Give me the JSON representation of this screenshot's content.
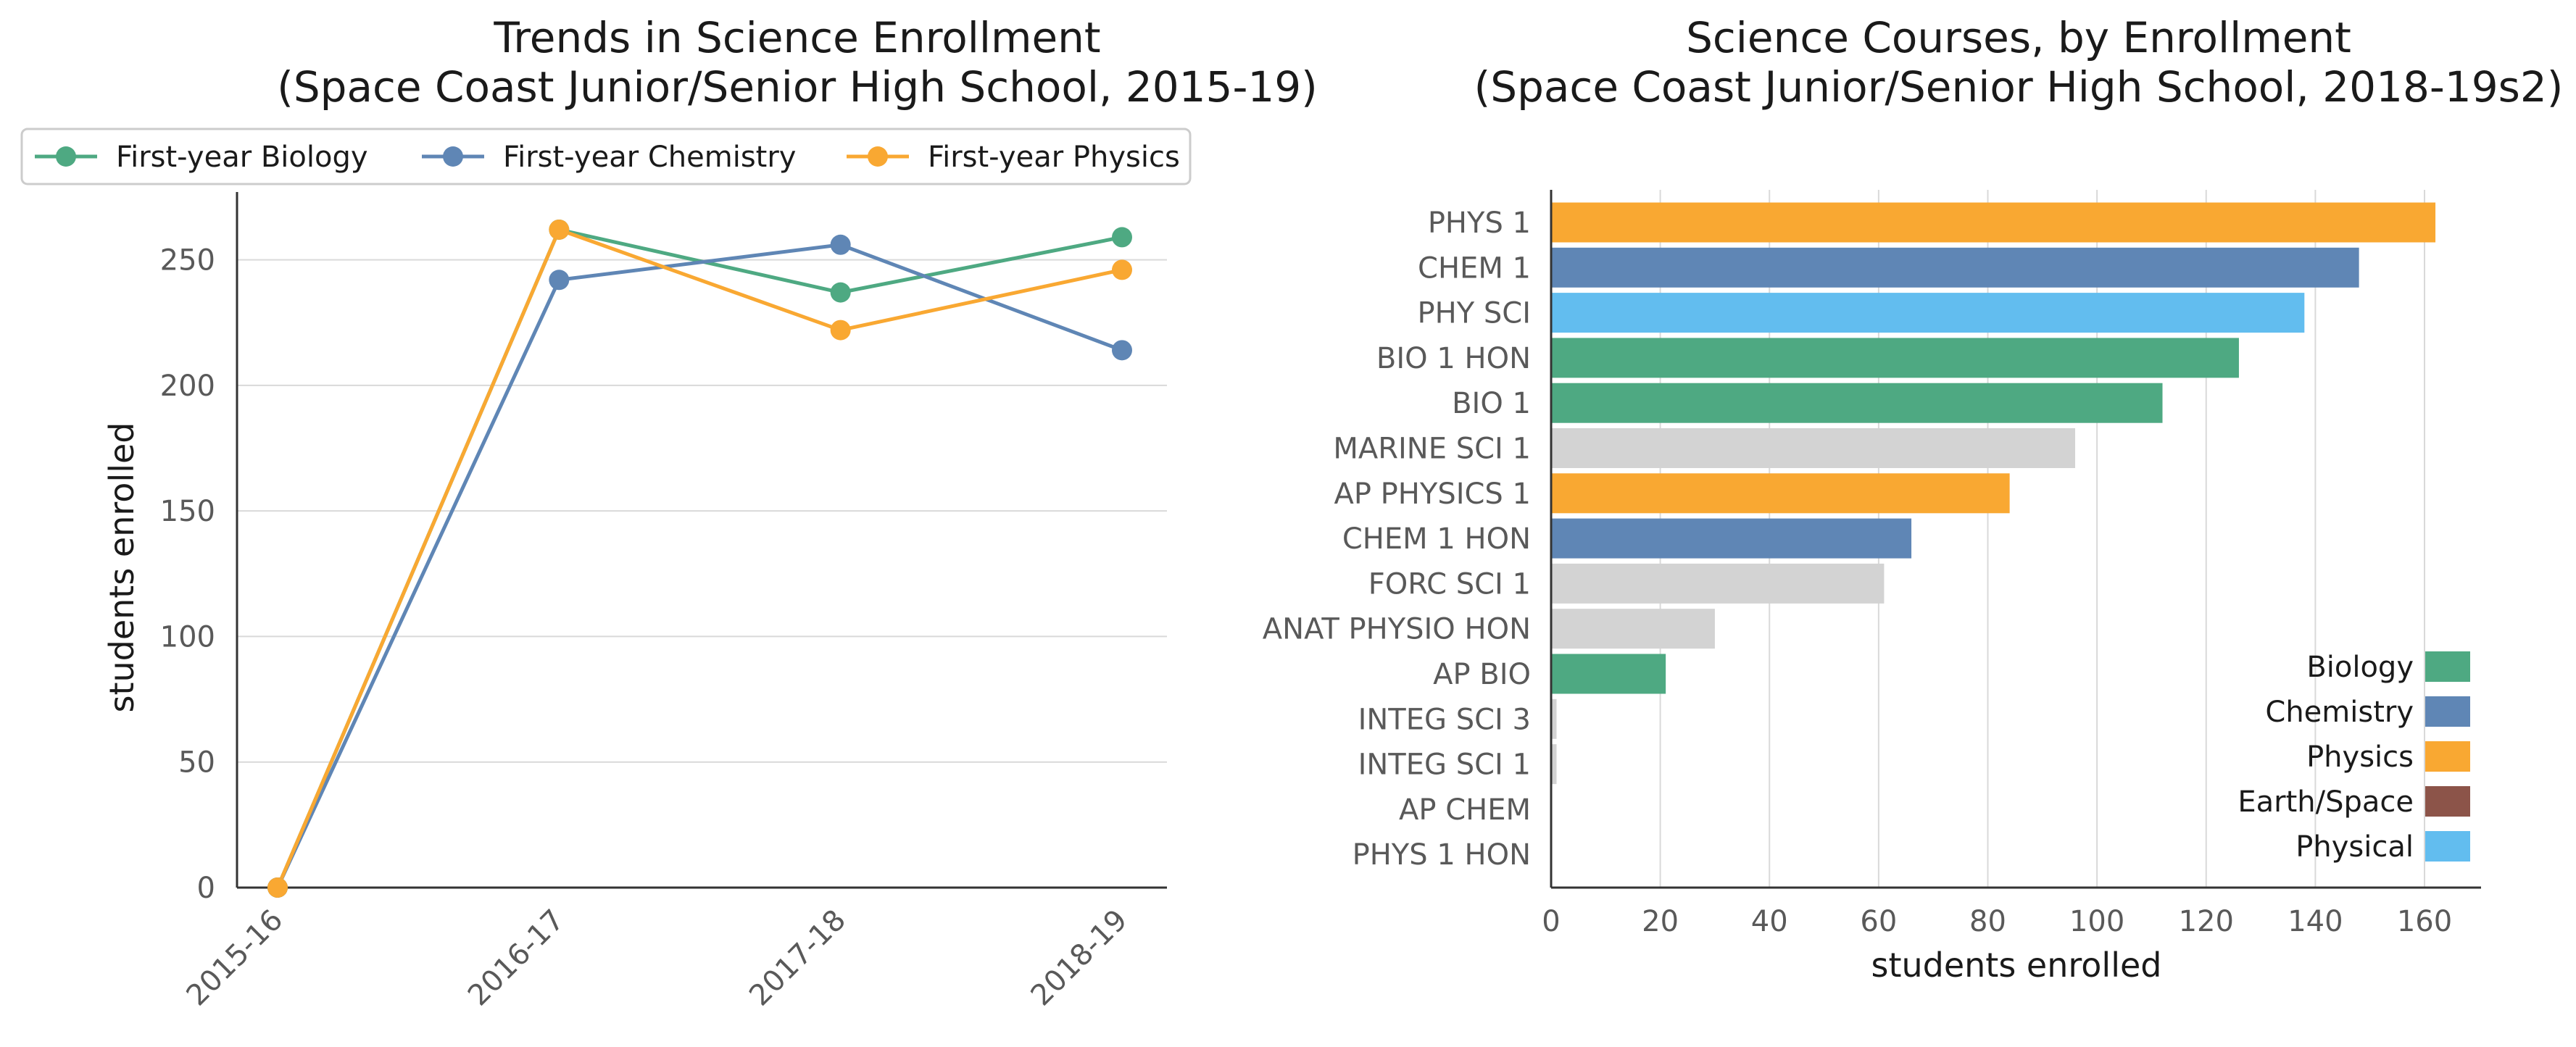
{
  "chart_data": [
    {
      "type": "line",
      "title": "Trends in Science Enrollment",
      "subtitle": "(Space Coast Junior/Senior High School, 2015-19)",
      "xlabel": "",
      "ylabel": "students enrolled",
      "x": [
        "2015-16",
        "2016-17",
        "2017-18",
        "2018-19"
      ],
      "yticks": [
        0,
        50,
        100,
        150,
        200,
        250
      ],
      "ylim": [
        0,
        277
      ],
      "grid": "horizontal",
      "legend": "top",
      "series": [
        {
          "name": "First-year Biology",
          "color": "#4ea982",
          "values": [
            0,
            262,
            237,
            259
          ]
        },
        {
          "name": "First-year Chemistry",
          "color": "#5f86b5",
          "values": [
            0,
            242,
            256,
            214
          ]
        },
        {
          "name": "First-year Physics",
          "color": "#f9a832",
          "values": [
            0,
            262,
            222,
            246
          ]
        }
      ]
    },
    {
      "type": "bar",
      "orientation": "horizontal",
      "title": "Science Courses, by Enrollment",
      "subtitle": "(Space Coast Junior/Senior High School, 2018-19s2)",
      "xlabel": "students enrolled",
      "ylabel": "",
      "xticks": [
        0,
        20,
        40,
        60,
        80,
        100,
        120,
        140,
        160
      ],
      "xlim": [
        0,
        170
      ],
      "grid": "vertical",
      "legend": "bottom-right",
      "categories": [
        "PHYS 1",
        "CHEM 1",
        "PHY SCI",
        "BIO 1 HON",
        "BIO 1",
        "MARINE SCI 1",
        "AP PHYSICS 1",
        "CHEM 1 HON",
        "FORC SCI 1",
        "ANAT PHYSIO HON",
        "AP BIO",
        "INTEG SCI 3",
        "INTEG SCI 1",
        "AP CHEM",
        "PHYS 1 HON"
      ],
      "values": [
        162,
        148,
        138,
        126,
        112,
        96,
        84,
        66,
        61,
        30,
        21,
        1,
        1,
        0,
        0
      ],
      "groups": [
        "Physics",
        "Chemistry",
        "Physical",
        "Biology",
        "Biology",
        "Other",
        "Physics",
        "Chemistry",
        "Other",
        "Other",
        "Biology",
        "Other",
        "Other",
        "Chemistry",
        "Physics"
      ],
      "group_colors": {
        "Biology": "#4ea982",
        "Chemistry": "#5f86b5",
        "Physics": "#f9a832",
        "Earth/Space": "#8c5449",
        "Physical": "#62bdef",
        "Other": "#d3d3d3"
      },
      "legend_entries": [
        "Biology",
        "Chemistry",
        "Physics",
        "Earth/Space",
        "Physical"
      ]
    }
  ]
}
